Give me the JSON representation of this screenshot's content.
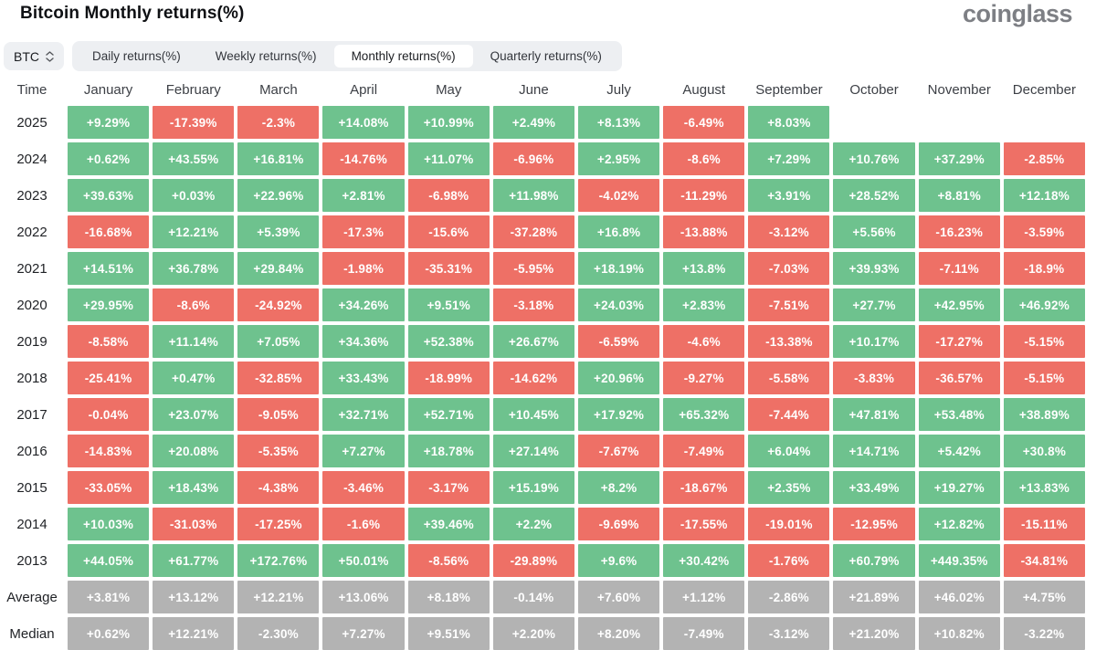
{
  "header": {
    "title": "Bitcoin Monthly returns(%)",
    "logo": "coinglass"
  },
  "controls": {
    "symbol_select": {
      "value": "BTC",
      "icon": "sort-carets-icon"
    },
    "tabs": [
      "Daily returns(%)",
      "Weekly returns(%)",
      "Monthly returns(%)",
      "Quarterly returns(%)"
    ],
    "active_tab": "Monthly returns(%)"
  },
  "colors": {
    "positive": "#6ec28e",
    "negative": "#ee7066",
    "neutral": "#b3b3b3",
    "tab_bar_bg": "#edeff2",
    "active_tab_bg": "#ffffff"
  },
  "table": {
    "columns": [
      "Time",
      "January",
      "February",
      "March",
      "April",
      "May",
      "June",
      "July",
      "August",
      "September",
      "October",
      "November",
      "December"
    ],
    "rows": [
      {
        "label": "2025",
        "neutral": false,
        "values": [
          "+9.29%",
          "-17.39%",
          "-2.3%",
          "+14.08%",
          "+10.99%",
          "+2.49%",
          "+8.13%",
          "-6.49%",
          "+8.03%",
          "",
          "",
          ""
        ]
      },
      {
        "label": "2024",
        "neutral": false,
        "values": [
          "+0.62%",
          "+43.55%",
          "+16.81%",
          "-14.76%",
          "+11.07%",
          "-6.96%",
          "+2.95%",
          "-8.6%",
          "+7.29%",
          "+10.76%",
          "+37.29%",
          "-2.85%"
        ]
      },
      {
        "label": "2023",
        "neutral": false,
        "values": [
          "+39.63%",
          "+0.03%",
          "+22.96%",
          "+2.81%",
          "-6.98%",
          "+11.98%",
          "-4.02%",
          "-11.29%",
          "+3.91%",
          "+28.52%",
          "+8.81%",
          "+12.18%"
        ]
      },
      {
        "label": "2022",
        "neutral": false,
        "values": [
          "-16.68%",
          "+12.21%",
          "+5.39%",
          "-17.3%",
          "-15.6%",
          "-37.28%",
          "+16.8%",
          "-13.88%",
          "-3.12%",
          "+5.56%",
          "-16.23%",
          "-3.59%"
        ]
      },
      {
        "label": "2021",
        "neutral": false,
        "values": [
          "+14.51%",
          "+36.78%",
          "+29.84%",
          "-1.98%",
          "-35.31%",
          "-5.95%",
          "+18.19%",
          "+13.8%",
          "-7.03%",
          "+39.93%",
          "-7.11%",
          "-18.9%"
        ]
      },
      {
        "label": "2020",
        "neutral": false,
        "values": [
          "+29.95%",
          "-8.6%",
          "-24.92%",
          "+34.26%",
          "+9.51%",
          "-3.18%",
          "+24.03%",
          "+2.83%",
          "-7.51%",
          "+27.7%",
          "+42.95%",
          "+46.92%"
        ]
      },
      {
        "label": "2019",
        "neutral": false,
        "values": [
          "-8.58%",
          "+11.14%",
          "+7.05%",
          "+34.36%",
          "+52.38%",
          "+26.67%",
          "-6.59%",
          "-4.6%",
          "-13.38%",
          "+10.17%",
          "-17.27%",
          "-5.15%"
        ]
      },
      {
        "label": "2018",
        "neutral": false,
        "values": [
          "-25.41%",
          "+0.47%",
          "-32.85%",
          "+33.43%",
          "-18.99%",
          "-14.62%",
          "+20.96%",
          "-9.27%",
          "-5.58%",
          "-3.83%",
          "-36.57%",
          "-5.15%"
        ]
      },
      {
        "label": "2017",
        "neutral": false,
        "values": [
          "-0.04%",
          "+23.07%",
          "-9.05%",
          "+32.71%",
          "+52.71%",
          "+10.45%",
          "+17.92%",
          "+65.32%",
          "-7.44%",
          "+47.81%",
          "+53.48%",
          "+38.89%"
        ]
      },
      {
        "label": "2016",
        "neutral": false,
        "values": [
          "-14.83%",
          "+20.08%",
          "-5.35%",
          "+7.27%",
          "+18.78%",
          "+27.14%",
          "-7.67%",
          "-7.49%",
          "+6.04%",
          "+14.71%",
          "+5.42%",
          "+30.8%"
        ]
      },
      {
        "label": "2015",
        "neutral": false,
        "values": [
          "-33.05%",
          "+18.43%",
          "-4.38%",
          "-3.46%",
          "-3.17%",
          "+15.19%",
          "+8.2%",
          "-18.67%",
          "+2.35%",
          "+33.49%",
          "+19.27%",
          "+13.83%"
        ]
      },
      {
        "label": "2014",
        "neutral": false,
        "values": [
          "+10.03%",
          "-31.03%",
          "-17.25%",
          "-1.6%",
          "+39.46%",
          "+2.2%",
          "-9.69%",
          "-17.55%",
          "-19.01%",
          "-12.95%",
          "+12.82%",
          "-15.11%"
        ]
      },
      {
        "label": "2013",
        "neutral": false,
        "values": [
          "+44.05%",
          "+61.77%",
          "+172.76%",
          "+50.01%",
          "-8.56%",
          "-29.89%",
          "+9.6%",
          "+30.42%",
          "-1.76%",
          "+60.79%",
          "+449.35%",
          "-34.81%"
        ]
      },
      {
        "label": "Average",
        "neutral": true,
        "values": [
          "+3.81%",
          "+13.12%",
          "+12.21%",
          "+13.06%",
          "+8.18%",
          "-0.14%",
          "+7.60%",
          "+1.12%",
          "-2.86%",
          "+21.89%",
          "+46.02%",
          "+4.75%"
        ]
      },
      {
        "label": "Median",
        "neutral": true,
        "values": [
          "+0.62%",
          "+12.21%",
          "-2.30%",
          "+7.27%",
          "+9.51%",
          "+2.20%",
          "+8.20%",
          "-7.49%",
          "-3.12%",
          "+21.20%",
          "+10.82%",
          "-3.22%"
        ]
      }
    ]
  },
  "chart_data": {
    "type": "heatmap",
    "title": "Bitcoin Monthly returns(%)",
    "columns": [
      "January",
      "February",
      "March",
      "April",
      "May",
      "June",
      "July",
      "August",
      "September",
      "October",
      "November",
      "December"
    ],
    "rows": [
      "2025",
      "2024",
      "2023",
      "2022",
      "2021",
      "2020",
      "2019",
      "2018",
      "2017",
      "2016",
      "2015",
      "2014",
      "2013",
      "Average",
      "Median"
    ],
    "values": [
      [
        9.29,
        -17.39,
        -2.3,
        14.08,
        10.99,
        2.49,
        8.13,
        -6.49,
        8.03,
        null,
        null,
        null
      ],
      [
        0.62,
        43.55,
        16.81,
        -14.76,
        11.07,
        -6.96,
        2.95,
        -8.6,
        7.29,
        10.76,
        37.29,
        -2.85
      ],
      [
        39.63,
        0.03,
        22.96,
        2.81,
        -6.98,
        11.98,
        -4.02,
        -11.29,
        3.91,
        28.52,
        8.81,
        12.18
      ],
      [
        -16.68,
        12.21,
        5.39,
        -17.3,
        -15.6,
        -37.28,
        16.8,
        -13.88,
        -3.12,
        5.56,
        -16.23,
        -3.59
      ],
      [
        14.51,
        36.78,
        29.84,
        -1.98,
        -35.31,
        -5.95,
        18.19,
        13.8,
        -7.03,
        39.93,
        -7.11,
        -18.9
      ],
      [
        29.95,
        -8.6,
        -24.92,
        34.26,
        9.51,
        -3.18,
        24.03,
        2.83,
        -7.51,
        27.7,
        42.95,
        46.92
      ],
      [
        -8.58,
        11.14,
        7.05,
        34.36,
        52.38,
        26.67,
        -6.59,
        -4.6,
        -13.38,
        10.17,
        -17.27,
        -5.15
      ],
      [
        -25.41,
        0.47,
        -32.85,
        33.43,
        -18.99,
        -14.62,
        20.96,
        -9.27,
        -5.58,
        -3.83,
        -36.57,
        -5.15
      ],
      [
        -0.04,
        23.07,
        -9.05,
        32.71,
        52.71,
        10.45,
        17.92,
        65.32,
        -7.44,
        47.81,
        53.48,
        38.89
      ],
      [
        -14.83,
        20.08,
        -5.35,
        7.27,
        18.78,
        27.14,
        -7.67,
        -7.49,
        6.04,
        14.71,
        5.42,
        30.8
      ],
      [
        -33.05,
        18.43,
        -4.38,
        -3.46,
        -3.17,
        15.19,
        8.2,
        -18.67,
        2.35,
        33.49,
        19.27,
        13.83
      ],
      [
        10.03,
        -31.03,
        -17.25,
        -1.6,
        39.46,
        2.2,
        -9.69,
        -17.55,
        -19.01,
        -12.95,
        12.82,
        -15.11
      ],
      [
        44.05,
        61.77,
        172.76,
        50.01,
        -8.56,
        -29.89,
        9.6,
        30.42,
        -1.76,
        60.79,
        449.35,
        -34.81
      ],
      [
        3.81,
        13.12,
        12.21,
        13.06,
        8.18,
        -0.14,
        7.6,
        1.12,
        -2.86,
        21.89,
        46.02,
        4.75
      ],
      [
        0.62,
        12.21,
        -2.3,
        7.27,
        9.51,
        2.2,
        8.2,
        -7.49,
        -3.12,
        21.2,
        10.82,
        -3.22
      ]
    ],
    "legend_position": "none",
    "color_rule": "positive=green, negative=red, Average/Median rows=gray"
  }
}
